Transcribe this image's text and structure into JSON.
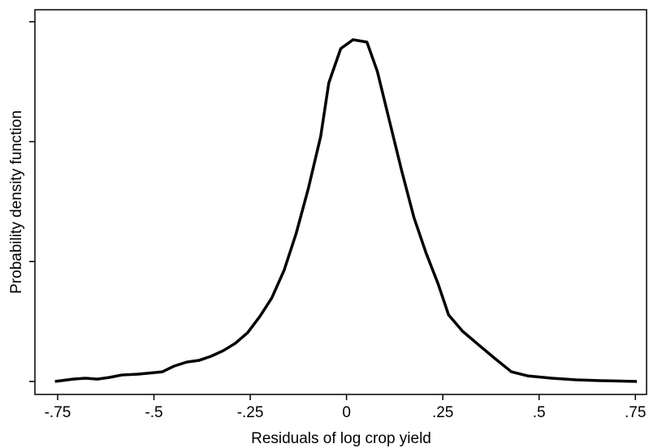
{
  "chart_data": {
    "type": "line",
    "xlabel": "Residuals of log crop yield",
    "ylabel": "Probability density function",
    "x": [
      -0.757,
      -0.71,
      -0.678,
      -0.647,
      -0.615,
      -0.584,
      -0.541,
      -0.478,
      -0.447,
      -0.415,
      -0.383,
      -0.352,
      -0.32,
      -0.289,
      -0.257,
      -0.225,
      -0.194,
      -0.162,
      -0.131,
      -0.099,
      -0.067,
      -0.046,
      -0.015,
      0.017,
      0.053,
      0.08,
      0.112,
      0.143,
      0.175,
      0.206,
      0.238,
      0.265,
      0.301,
      0.343,
      0.386,
      0.428,
      0.47,
      0.533,
      0.596,
      0.659,
      0.754
    ],
    "series": [
      {
        "color": "#000000",
        "values": [
          0.0,
          0.02,
          0.027,
          0.02,
          0.034,
          0.054,
          0.061,
          0.081,
          0.129,
          0.162,
          0.176,
          0.21,
          0.257,
          0.318,
          0.406,
          0.542,
          0.697,
          0.928,
          1.232,
          1.611,
          2.045,
          2.49,
          2.776,
          2.85,
          2.83,
          2.586,
          2.166,
          1.76,
          1.368,
          1.076,
          0.812,
          0.555,
          0.42,
          0.305,
          0.19,
          0.081,
          0.047,
          0.027,
          0.014,
          0.007,
          0.0
        ]
      }
    ],
    "xlim": [
      -0.809,
      0.779
    ],
    "ylim": [
      -0.108,
      3.1
    ],
    "xticks": [
      {
        "value": -0.75,
        "label": "-.75"
      },
      {
        "value": -0.5,
        "label": "-.5"
      },
      {
        "value": -0.25,
        "label": "-.25"
      },
      0,
      {
        "value": 0.25,
        "label": ".25"
      },
      {
        "value": 0.5,
        "label": ".5"
      },
      {
        "value": 0.75,
        "label": ".75"
      }
    ],
    "yticks": [
      0,
      1,
      2,
      3
    ]
  }
}
